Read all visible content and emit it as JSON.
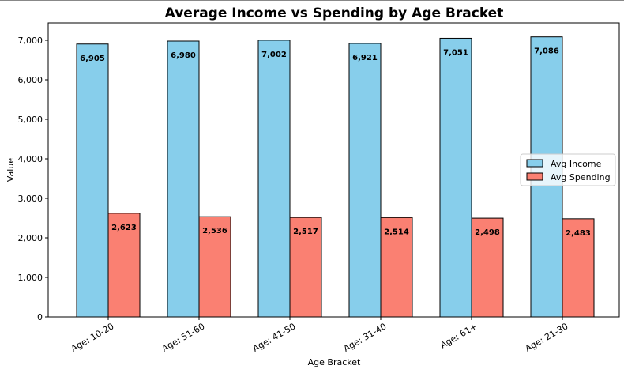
{
  "chart_data": {
    "type": "bar",
    "title": "Average Income vs Spending by Age Bracket",
    "xlabel": "Age Bracket",
    "ylabel": "Value",
    "categories": [
      "Age: 10-20",
      "Age: 51-60",
      "Age: 41-50",
      "Age: 31-40",
      "Age: 61+",
      "Age: 21-30"
    ],
    "series": [
      {
        "name": "Avg Income",
        "values": [
          6905,
          6980,
          7002,
          6921,
          7051,
          7086
        ],
        "labels": [
          "6,905",
          "6,980",
          "7,002",
          "6,921",
          "7,051",
          "7,086"
        ],
        "color": "#87CEEB"
      },
      {
        "name": "Avg Spending",
        "values": [
          2623,
          2536,
          2517,
          2514,
          2498,
          2483
        ],
        "labels": [
          "2,623",
          "2,536",
          "2,517",
          "2,514",
          "2,498",
          "2,483"
        ],
        "color": "#FA8072"
      }
    ],
    "ylim": [
      0,
      7440
    ],
    "yticks": [
      0,
      1000,
      2000,
      3000,
      4000,
      5000,
      6000,
      7000
    ],
    "ytick_labels": [
      "0",
      "1,000",
      "2,000",
      "3,000",
      "4,000",
      "5,000",
      "6,000",
      "7,000"
    ],
    "legend_position": "center-right",
    "grid": false,
    "bar_edge_color": "#000000"
  }
}
